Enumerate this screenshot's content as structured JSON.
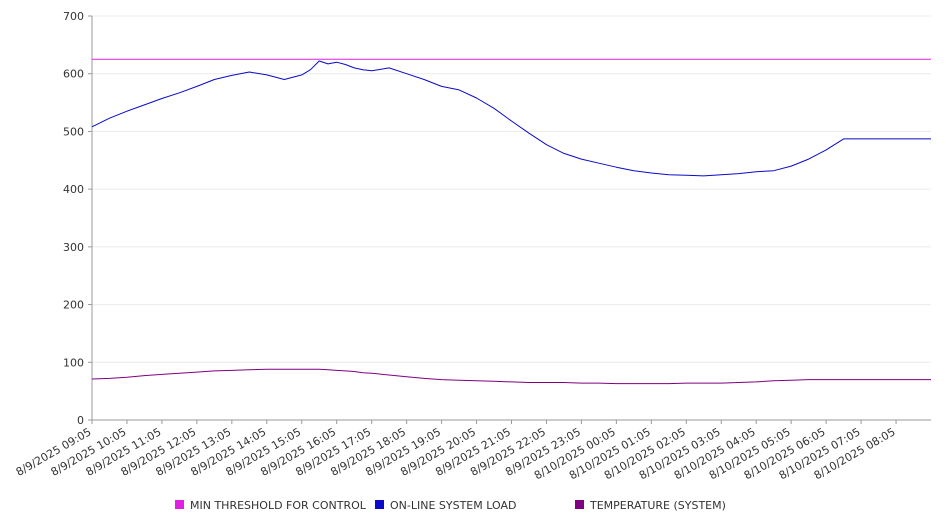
{
  "chart_data": {
    "type": "line",
    "ylim": [
      0,
      700
    ],
    "y_ticks": [
      0,
      100,
      200,
      300,
      400,
      500,
      600,
      700
    ],
    "grid": true,
    "legend_placement": "bottom",
    "x_tick_labels": [
      "8/9/2025 09:05",
      "8/9/2025 10:05",
      "8/9/2025 11:05",
      "8/9/2025 12:05",
      "8/9/2025 13:05",
      "8/9/2025 14:05",
      "8/9/2025 15:05",
      "8/9/2025 16:05",
      "8/9/2025 17:05",
      "8/9/2025 18:05",
      "8/9/2025 19:05",
      "8/9/2025 20:05",
      "8/9/2025 21:05",
      "8/9/2025 22:05",
      "8/9/2025 23:05",
      "8/10/2025 00:05",
      "8/10/2025 01:05",
      "8/10/2025 02:05",
      "8/10/2025 03:05",
      "8/10/2025 04:05",
      "8/10/2025 05:05",
      "8/10/2025 06:05",
      "8/10/2025 07:05",
      "8/10/2025 08:05"
    ],
    "x_hours": [
      0,
      0.5,
      1,
      1.5,
      2,
      2.5,
      3,
      3.5,
      4,
      4.5,
      5,
      5.5,
      6,
      6.25,
      6.5,
      6.75,
      7,
      7.25,
      7.5,
      7.75,
      8,
      8.5,
      9,
      9.5,
      10,
      10.5,
      11,
      11.5,
      12,
      12.5,
      13,
      13.5,
      14,
      14.5,
      15,
      15.5,
      16,
      16.5,
      17,
      17.5,
      18,
      18.5,
      19,
      19.5,
      20,
      20.5,
      21,
      21.5,
      22,
      22.5,
      23,
      23.5,
      24
    ],
    "series": [
      {
        "name": "MIN THRESHOLD FOR CONTROL",
        "color": "#e020e0",
        "values": [
          625,
          625,
          625,
          625,
          625,
          625,
          625,
          625,
          625,
          625,
          625,
          625,
          625,
          625,
          625,
          625,
          625,
          625,
          625,
          625,
          625,
          625,
          625,
          625,
          625,
          625,
          625,
          625,
          625,
          625,
          625,
          625,
          625,
          625,
          625,
          625,
          625,
          625,
          625,
          625,
          625,
          625,
          625,
          625,
          625,
          625,
          625,
          625,
          625,
          625,
          625,
          625,
          625
        ]
      },
      {
        "name": "ON-LINE SYSTEM LOAD",
        "color": "#0a0ac8",
        "values": [
          508,
          523,
          535,
          546,
          557,
          567,
          578,
          590,
          597,
          603,
          598,
          590,
          598,
          607,
          622,
          617,
          620,
          616,
          610,
          607,
          605,
          610,
          600,
          590,
          578,
          572,
          558,
          540,
          518,
          497,
          477,
          462,
          452,
          445,
          438,
          432,
          428,
          425,
          424,
          423,
          425,
          427,
          430,
          432,
          440,
          452,
          468,
          487,
          487,
          487,
          487,
          487,
          487
        ]
      },
      {
        "name": "TEMPERATURE (SYSTEM)",
        "color": "#800080",
        "values": [
          71,
          72,
          74,
          77,
          79,
          81,
          83,
          85,
          86,
          87,
          88,
          88,
          88,
          88,
          88,
          87,
          86,
          85,
          84,
          82,
          81,
          78,
          75,
          72,
          70,
          69,
          68,
          67,
          66,
          65,
          65,
          65,
          64,
          64,
          63,
          63,
          63,
          63,
          64,
          64,
          64,
          65,
          66,
          68,
          69,
          70,
          70,
          70,
          70,
          70,
          70,
          70,
          70
        ]
      }
    ]
  },
  "legend": {
    "items": [
      {
        "label": "MIN THRESHOLD FOR CONTROL",
        "color": "#e020e0"
      },
      {
        "label": "ON-LINE SYSTEM LOAD",
        "color": "#0a0ac8"
      },
      {
        "label": "TEMPERATURE (SYSTEM)",
        "color": "#800080"
      }
    ]
  }
}
